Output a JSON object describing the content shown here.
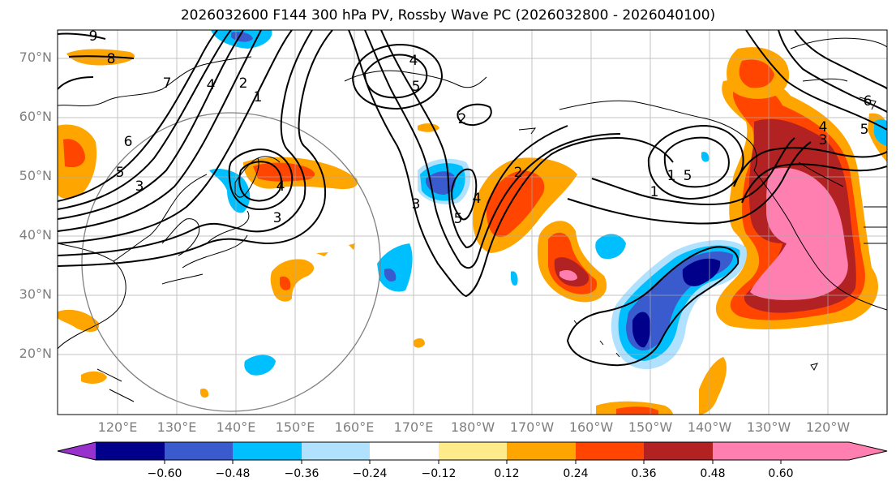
{
  "title": "2026032600 F144 300 hPa PV, Rossby Wave PC (2026032800 - 2026040100)",
  "lat_labels": [
    "70°N",
    "60°N",
    "50°N",
    "40°N",
    "30°N",
    "20°N"
  ],
  "lon_labels": [
    "120°E",
    "130°E",
    "140°E",
    "150°E",
    "160°E",
    "170°E",
    "180°W",
    "170°W",
    "160°W",
    "150°W",
    "140°W",
    "130°W",
    "120°W"
  ],
  "colorbar": {
    "ticks": [
      "−0.60",
      "−0.48",
      "−0.36",
      "−0.24",
      "−0.12",
      "0.12",
      "0.24",
      "0.36",
      "0.48",
      "0.60"
    ],
    "colors": [
      "#9932cc",
      "#00008b",
      "#3a5bcd",
      "#00bfff",
      "#b0e2ff",
      "#ffffff",
      "#ffeb8a",
      "#ffa500",
      "#ff4500",
      "#b22222",
      "#ff7fb0"
    ]
  },
  "contour_labels": [
    "9",
    "8",
    "7",
    "4",
    "2",
    "1",
    "3",
    "5",
    "6",
    "3",
    "4",
    "5",
    "4",
    "3",
    "2",
    "1",
    "2",
    "5",
    "4",
    "5",
    "1",
    "4",
    "3",
    "6",
    "5"
  ]
}
